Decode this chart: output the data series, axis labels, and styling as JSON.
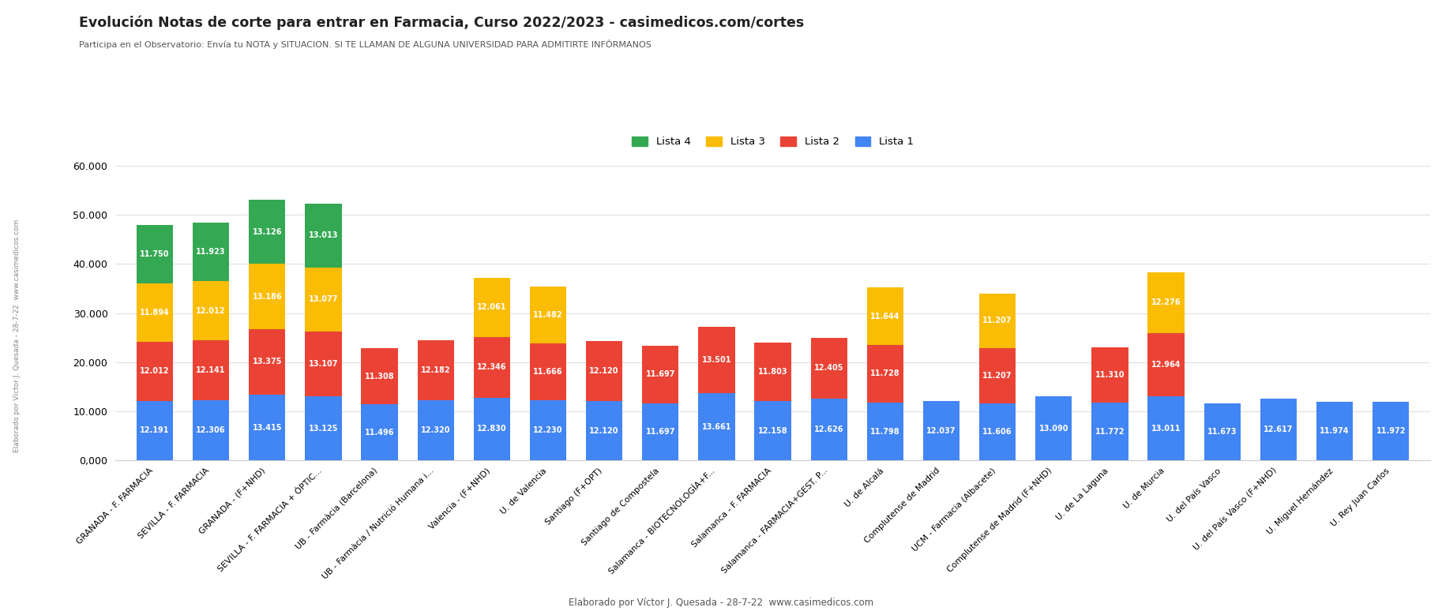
{
  "title": "Evolución Notas de corte para entrar en Farmacia, Curso 2022/2023 - casimedicos.com/cortes",
  "subtitle": "Participa en el Observatorio: Envía tu NOTA y SITUACION. SI TE LLAMAN DE ALGUNA UNIVERSIDAD PARA ADMITIRTE INFÓRMANOS",
  "footer": "Elaborado por Víctor J. Quesada - 28-7-22  www.casimedicos.com",
  "left_rotated_label": "Elaborado por Víctor J. Quesada - 28-7-22  www.casimedicos.com",
  "legend_labels": [
    "Lista 4",
    "Lista 3",
    "Lista 2",
    "Lista 1"
  ],
  "colors": {
    "lista4": "#34A853",
    "lista3": "#FBBC04",
    "lista2": "#EA4335",
    "lista1": "#4285F4"
  },
  "categories": [
    "GRANADA - F. FARMACIA",
    "SEVILLA - F. FARMACIA",
    "GRANADA - (F+NHD)",
    "SEVILLA - F. FARMACIA + ÓPTIC...",
    "UB - Farmàcia (Barcelona)",
    "UB - Farmàcia / Nutrició Humana i...",
    "Valencia - (F+NHD)",
    "U. de Valencia",
    "Santiago (F+OPT)",
    "Santiago de Compostela",
    "Salamanca - BIOTECNOLOGÍA+F...",
    "Salamanca - F. FARMACIA",
    "Salamanca - FARMACIA+GEST. P...",
    "U. de Alcalá",
    "Complutense de Madrid",
    "UCM - Farmacia (Albacete)",
    "Complutense de Madrid (F+NHD)",
    "U. de La Laguna",
    "U. de Murcia",
    "U. del País Vasco",
    "U. del País Vasco (F+NHD)",
    "U. Miguel Hernández",
    "U. Rey Juan Carlos"
  ],
  "lista1": [
    12191,
    12306,
    13415,
    13125,
    11496,
    12320,
    12830,
    12230,
    12120,
    11697,
    13661,
    12158,
    12626,
    11798,
    12037,
    11606,
    13090,
    11772,
    13011,
    11673,
    12617,
    11974,
    11972
  ],
  "lista2": [
    12012,
    12141,
    13375,
    13107,
    11308,
    12182,
    12346,
    11666,
    12120,
    11697,
    13501,
    11803,
    12405,
    11728,
    0,
    11207,
    0,
    11310,
    12964,
    0,
    0,
    0,
    0
  ],
  "lista3": [
    11894,
    12012,
    13186,
    13077,
    0,
    0,
    12061,
    11482,
    0,
    0,
    0,
    0,
    0,
    11644,
    0,
    11207,
    0,
    0,
    12276,
    0,
    0,
    0,
    0
  ],
  "lista4": [
    11750,
    11923,
    13126,
    13013,
    0,
    0,
    0,
    0,
    0,
    0,
    0,
    0,
    0,
    0,
    0,
    0,
    0,
    0,
    0,
    0,
    0,
    0,
    0
  ],
  "ylim": [
    0,
    60000
  ],
  "yticks": [
    0,
    10000,
    20000,
    30000,
    40000,
    50000,
    60000
  ],
  "ytick_labels": [
    "0,000",
    "10.000",
    "20.000",
    "30.000",
    "40.000",
    "50.000",
    "60.000"
  ],
  "background_color": "#ffffff",
  "grid_color": "#e0e0e0",
  "title_color": "#212121",
  "subtitle_color": "#555555",
  "label_fontsize": 7.0,
  "bar_width": 0.65
}
